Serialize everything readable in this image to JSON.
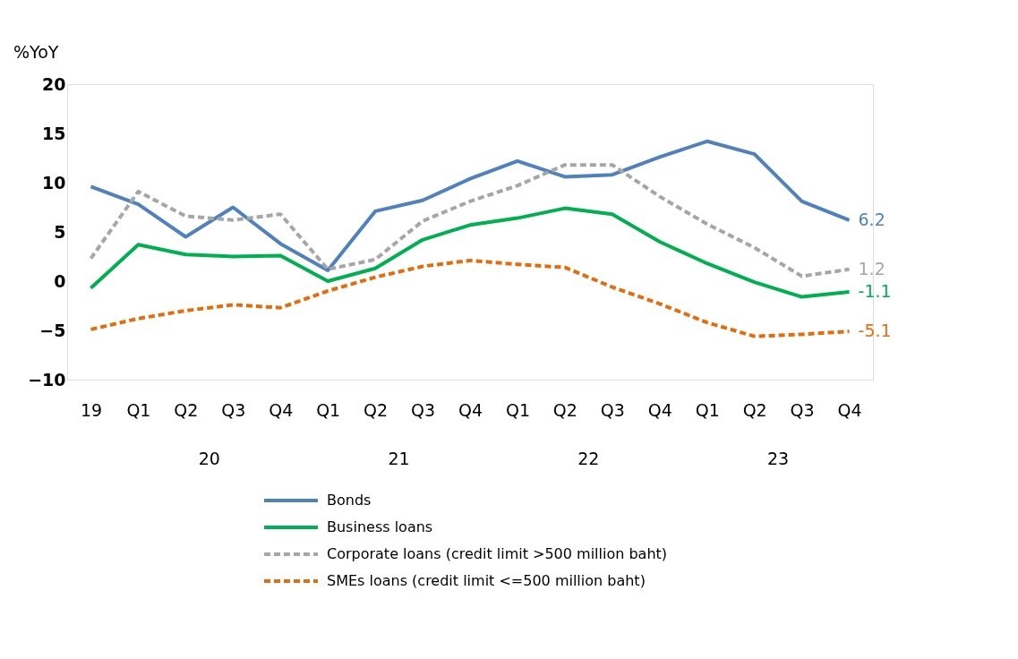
{
  "chart_data": {
    "type": "line",
    "ylabel": "%YoY",
    "categories": [
      "19",
      "Q1",
      "Q2",
      "Q3",
      "Q4",
      "Q1",
      "Q2",
      "Q3",
      "Q4",
      "Q1",
      "Q2",
      "Q3",
      "Q4",
      "Q1",
      "Q2",
      "Q3",
      "Q4"
    ],
    "annotations": [
      "20",
      "21",
      "22",
      "23"
    ],
    "series": [
      {
        "name": "Bonds",
        "color": "#4f81bd",
        "line_style": "solid",
        "values": [
          9.6,
          7.8,
          4.5,
          7.5,
          3.8,
          1.1,
          7.1,
          8.2,
          10.4,
          12.2,
          10.6,
          10.8,
          12.6,
          14.2,
          12.9,
          8.1,
          6.2
        ],
        "value_labels": [
          null,
          null,
          null,
          null,
          null,
          null,
          null,
          null,
          null,
          null,
          null,
          null,
          null,
          null,
          null,
          null,
          "6.2"
        ]
      },
      {
        "name": "Business loans",
        "color": "#00b050",
        "line_style": "solid",
        "values": [
          -0.7,
          3.7,
          2.7,
          2.5,
          2.6,
          0.0,
          1.3,
          4.2,
          5.7,
          6.4,
          7.4,
          6.8,
          4.0,
          1.8,
          -0.1,
          -1.6,
          -1.1
        ],
        "value_labels": [
          null,
          null,
          null,
          null,
          null,
          null,
          null,
          null,
          null,
          null,
          null,
          null,
          null,
          null,
          null,
          null,
          "-1.1"
        ]
      },
      {
        "name": "Corporate loans (credit limit >500 million baht)",
        "color": "#a6a6a6",
        "line_style": "dashed",
        "values": [
          2.3,
          9.1,
          6.6,
          6.2,
          6.8,
          1.2,
          2.2,
          6.1,
          8.1,
          9.7,
          11.8,
          11.8,
          8.6,
          5.8,
          3.4,
          0.5,
          1.2
        ],
        "value_labels": [
          null,
          null,
          null,
          null,
          null,
          null,
          null,
          null,
          null,
          null,
          null,
          null,
          null,
          null,
          null,
          null,
          "1.2"
        ]
      },
      {
        "name": "SMEs loans (credit limit <=500 million baht)",
        "color": "#e46c0a",
        "line_style": "dashed",
        "values": [
          -4.9,
          -3.8,
          -3.0,
          -2.4,
          -2.7,
          -1.0,
          0.4,
          1.5,
          2.1,
          1.7,
          1.4,
          -0.6,
          -2.3,
          -4.2,
          -5.6,
          -5.4,
          -5.1
        ],
        "value_labels": [
          null,
          null,
          null,
          null,
          null,
          null,
          null,
          null,
          null,
          null,
          null,
          null,
          null,
          null,
          null,
          null,
          "-5.1"
        ]
      }
    ],
    "ylim": [
      -10,
      20
    ],
    "yticks": [
      -10,
      -5,
      0,
      5,
      10,
      15,
      20
    ],
    "grid": false,
    "legend": "bottom"
  }
}
